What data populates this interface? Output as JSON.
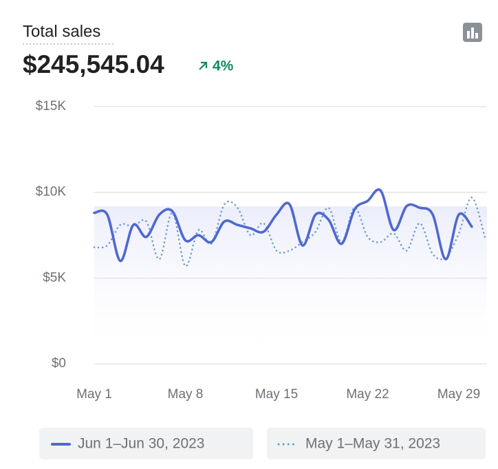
{
  "chart_data": {
    "type": "line",
    "title": "Total sales",
    "total": "$245,545.04",
    "change": "4%",
    "categories": [
      "May 1",
      null,
      null,
      null,
      null,
      null,
      null,
      "May 8",
      null,
      null,
      null,
      null,
      null,
      null,
      "May 15",
      null,
      null,
      null,
      null,
      null,
      null,
      "May 22",
      null,
      null,
      null,
      null,
      null,
      null,
      "May 29",
      null,
      null
    ],
    "series": [
      {
        "name": "Jun 1–Jun 30, 2023",
        "color": "#4f68d0",
        "style": "solid",
        "values": [
          8800,
          8700,
          6000,
          8100,
          7400,
          8700,
          8900,
          7200,
          7500,
          7100,
          8300,
          8100,
          7900,
          7700,
          8700,
          9300,
          6900,
          8700,
          8400,
          7000,
          9000,
          9500,
          10100,
          7800,
          9200,
          9100,
          8700,
          6100,
          8700,
          8000,
          null
        ]
      },
      {
        "name": "May 1–May 31, 2023",
        "color": "#6b9bd2",
        "style": "dotted",
        "values": [
          6800,
          6900,
          8100,
          8000,
          8300,
          6100,
          8800,
          5700,
          7800,
          7000,
          9300,
          9100,
          7500,
          8200,
          6600,
          6600,
          7100,
          7700,
          9100,
          7100,
          9100,
          7400,
          7100,
          7600,
          6600,
          8200,
          6400,
          6200,
          7600,
          9700,
          7400
        ]
      }
    ],
    "ylim": [
      0,
      15000
    ],
    "yticks": [
      {
        "value": 0,
        "label": "$0"
      },
      {
        "value": 5000,
        "label": "$5K"
      },
      {
        "value": 10000,
        "label": "$10K"
      },
      {
        "value": 15000,
        "label": "$15K"
      }
    ],
    "grid": true
  }
}
